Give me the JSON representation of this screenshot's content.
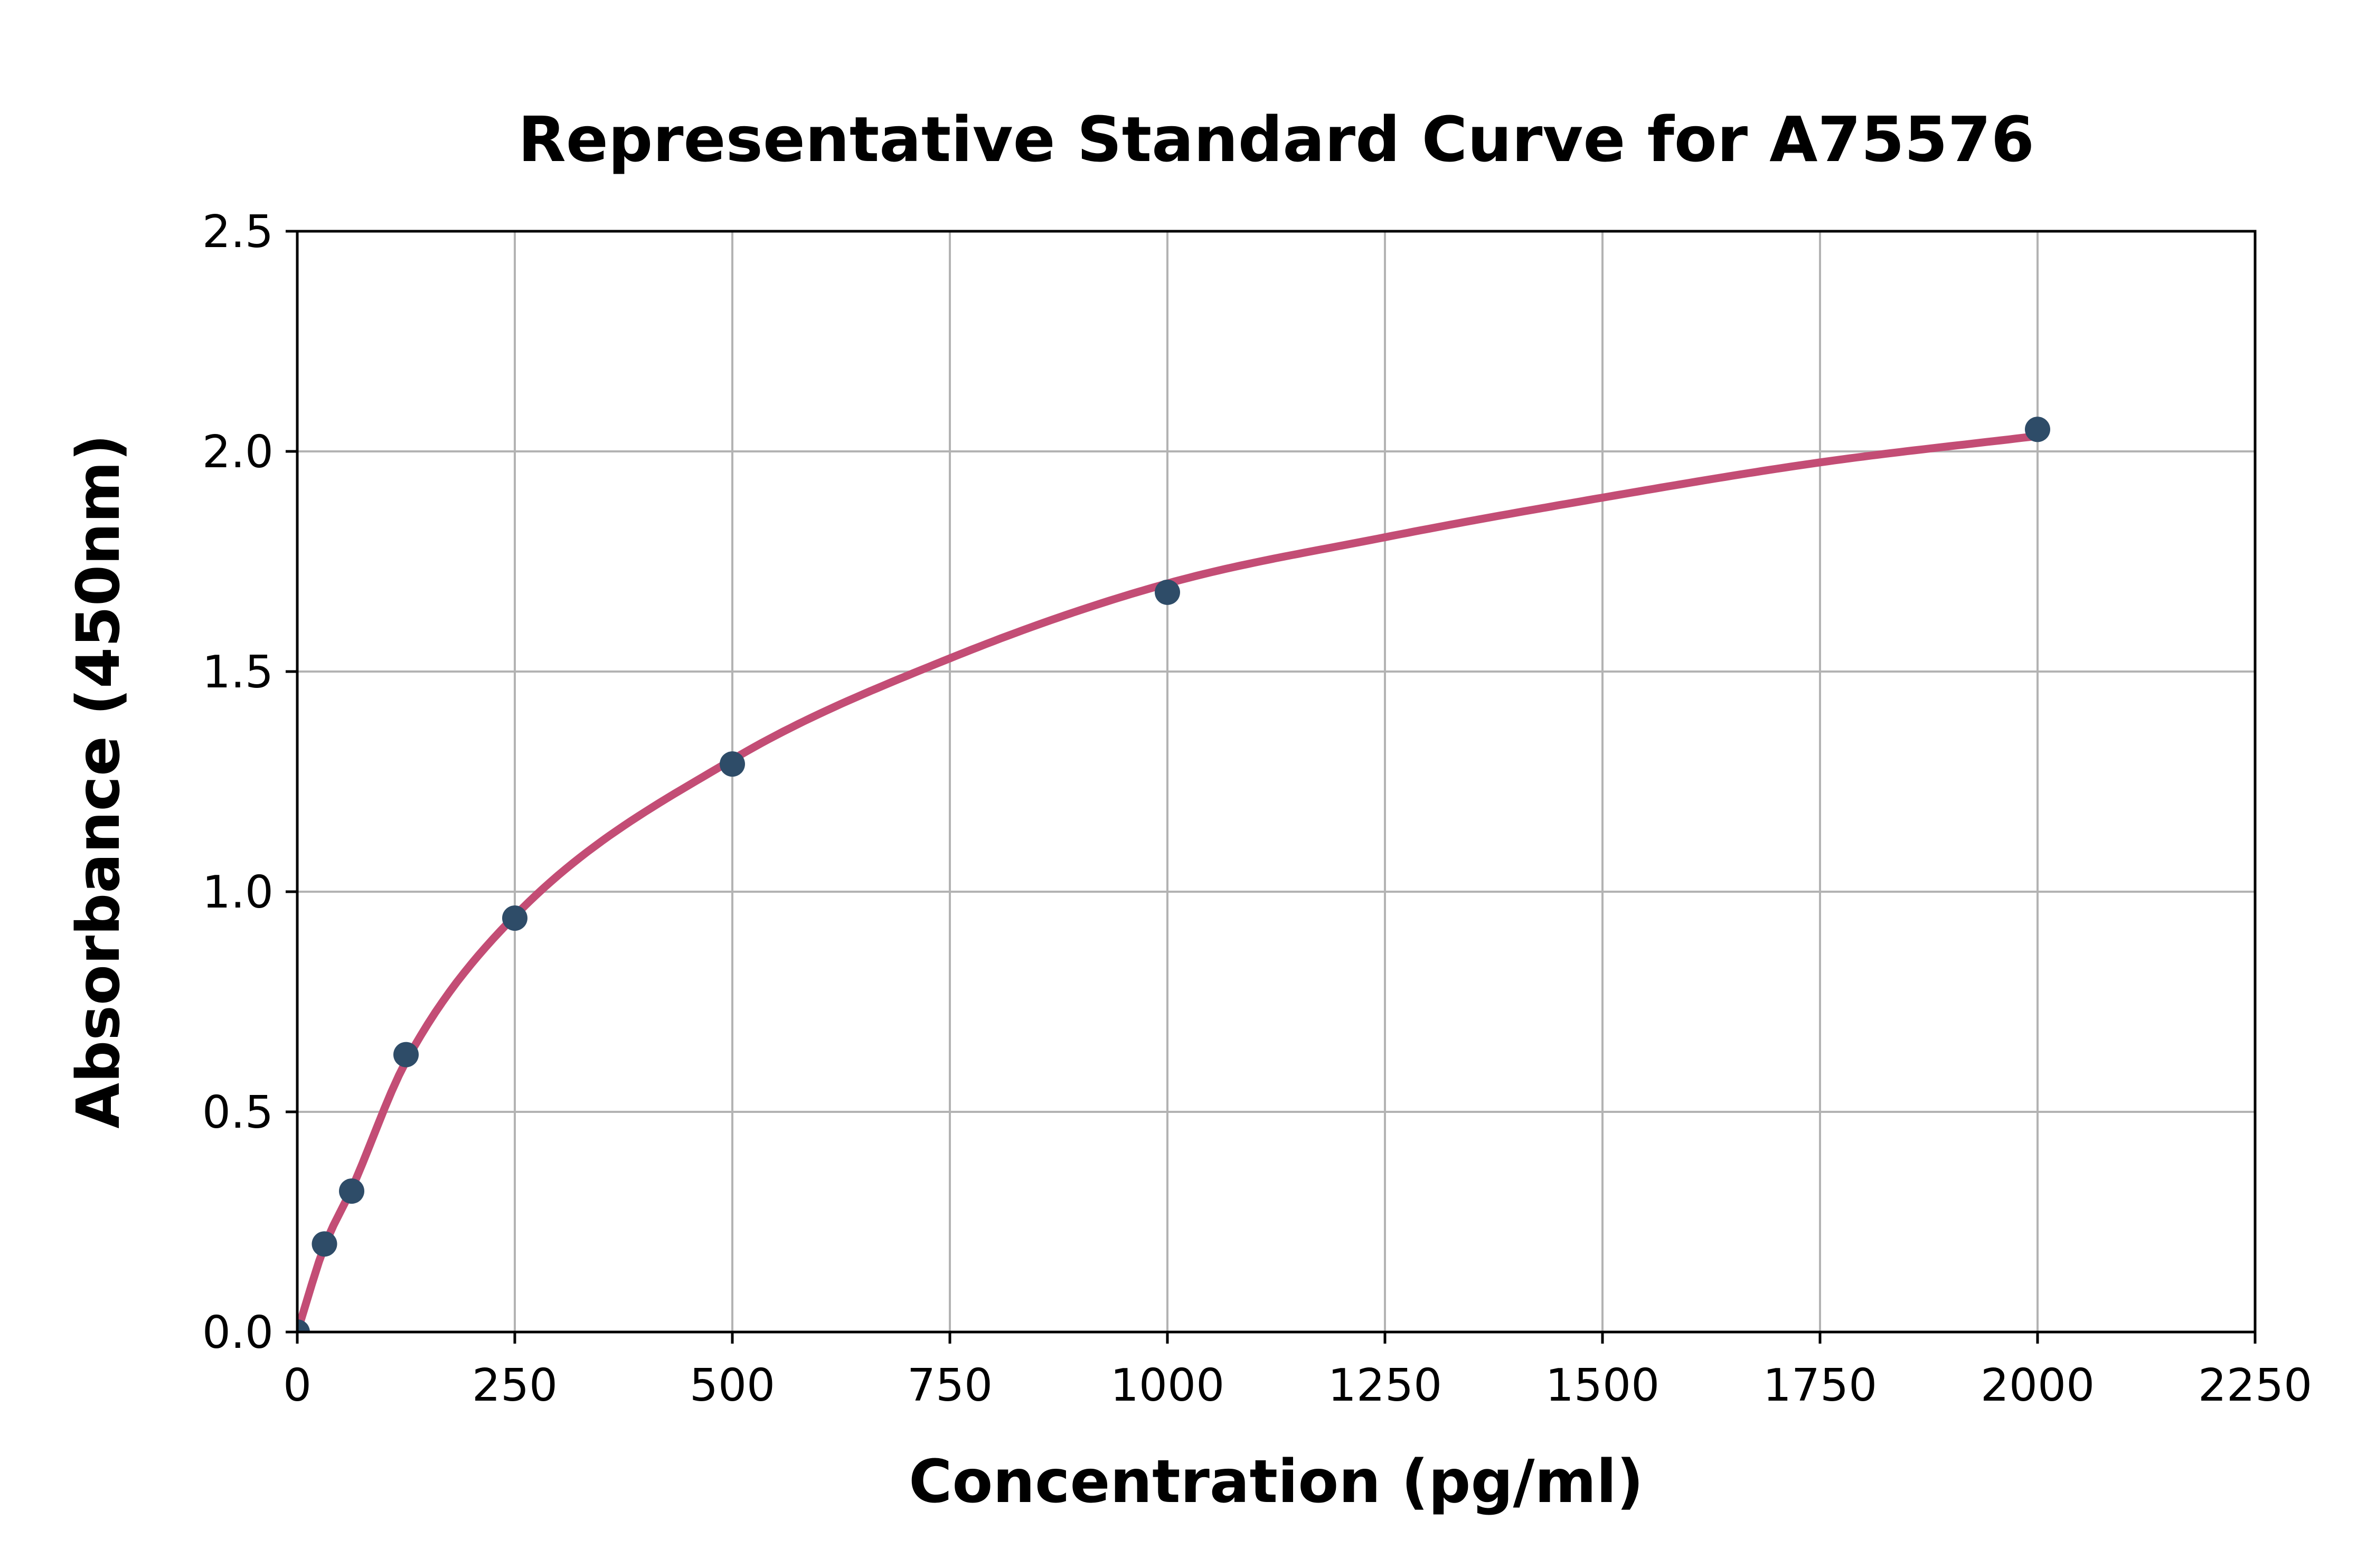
{
  "chart_data": {
    "type": "scatter",
    "title": "Representative Standard Curve for A75576",
    "xlabel": "Concentration (pg/ml)",
    "ylabel": "Absorbance (450nm)",
    "xlim": [
      0,
      2250
    ],
    "ylim": [
      0,
      2.5
    ],
    "x_tick_labels": [
      "0",
      "250",
      "500",
      "750",
      "1000",
      "1250",
      "1500",
      "1750",
      "2000",
      "2250"
    ],
    "y_tick_labels": [
      "0.0",
      "0.5",
      "1.0",
      "1.5",
      "2.0",
      "2.5"
    ],
    "grid": true,
    "legend": "none",
    "series": [
      {
        "name": "standards",
        "style": "points",
        "points": [
          {
            "x": 0,
            "y": 0.0
          },
          {
            "x": 31.25,
            "y": 0.2
          },
          {
            "x": 62.5,
            "y": 0.32
          },
          {
            "x": 125,
            "y": 0.63
          },
          {
            "x": 250,
            "y": 0.94
          },
          {
            "x": 500,
            "y": 1.29
          },
          {
            "x": 1000,
            "y": 1.68
          },
          {
            "x": 2000,
            "y": 2.05
          }
        ]
      },
      {
        "name": "fitted-curve",
        "style": "line",
        "points": [
          {
            "x": 0,
            "y": 0.0
          },
          {
            "x": 31.25,
            "y": 0.195
          },
          {
            "x": 62.5,
            "y": 0.325
          },
          {
            "x": 125,
            "y": 0.615
          },
          {
            "x": 250,
            "y": 0.945
          },
          {
            "x": 500,
            "y": 1.3
          },
          {
            "x": 750,
            "y": 1.53
          },
          {
            "x": 1000,
            "y": 1.7
          },
          {
            "x": 1250,
            "y": 1.805
          },
          {
            "x": 1500,
            "y": 1.895
          },
          {
            "x": 1750,
            "y": 1.975
          },
          {
            "x": 2000,
            "y": 2.035
          }
        ]
      }
    ],
    "colors": {
      "curve": "#c34d75",
      "points": "#2e4c68",
      "grid": "#b3b3b3",
      "axis": "#000000",
      "background": "#ffffff"
    }
  }
}
